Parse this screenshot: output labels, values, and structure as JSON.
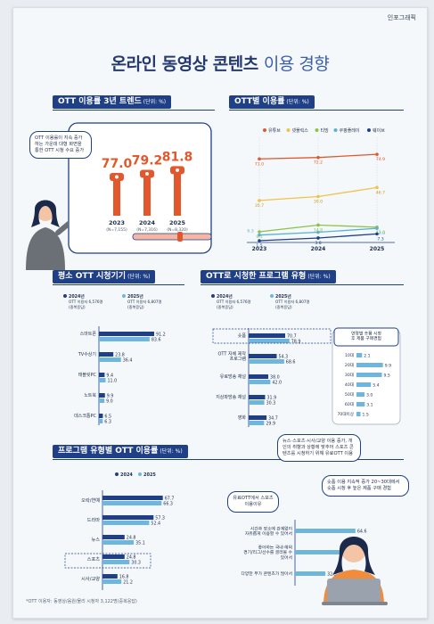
{
  "corner_label": "인포그래픽",
  "title_bold": "온라인 동영상 콘텐츠",
  "title_thin": "이용 경향",
  "footnote": "*OTT 이용자: 동영상/음원/물리 시청자 3,122명(중복응답)",
  "bubble_ott": "OTT 이용률이 지속 증가하는 가운데 대형 화면을 통한 OTT 시청 수요 증가",
  "bubble_top": "뉴스·스포츠·시사/교양 이용 증가, 개인의 취향과 상황에 맞추어 스포츠 콘텐츠를 시청하기 위해 유료OTT 이용",
  "bubble_short": "숏폼 이용 지속적 증가 20~30대에서 숏폼 시청 후 높은 제품 구매 경험",
  "bubble_paid": "유료OTT에서 스포츠 이용이유",
  "chart_data": [
    {
      "id": "trend",
      "type": "bar",
      "title": "OTT 이용률 3년 트렌드",
      "unit": "(단위: %)",
      "categories": [
        "2023",
        "2024",
        "2025"
      ],
      "category_sub": [
        "(N=7,155)",
        "(N=7,316)",
        "(N=8,320)"
      ],
      "values": [
        77.0,
        79.2,
        81.8
      ],
      "labels": [
        "77.0",
        "79.2",
        "81.8"
      ],
      "color": "#e2572b",
      "ylim": [
        0,
        100
      ]
    },
    {
      "id": "byott",
      "type": "line",
      "title": "OTT별 이용률",
      "unit": "(단위: %)",
      "x": [
        "2023",
        "2024",
        "2025"
      ],
      "ylim": [
        0,
        80
      ],
      "series": [
        {
          "name": "유튜브",
          "color": "#e2572b",
          "values": [
            71.0,
            72.2,
            74.9
          ],
          "labels": [
            "71.0",
            "72.2",
            "74.9"
          ]
        },
        {
          "name": "넷플릭스",
          "color": "#f2c14a",
          "values": [
            35.7,
            39.0,
            46.7
          ],
          "labels": [
            "35.7",
            "39.0",
            "46.7"
          ]
        },
        {
          "name": "티빙",
          "color": "#8bc34a",
          "values": [
            9.1,
            14.8,
            13.0
          ],
          "labels": [
            "9.1",
            "14.8",
            "13.0"
          ]
        },
        {
          "name": "쿠팡플레이",
          "color": "#5bb0d6",
          "values": [
            6.3,
            8.7,
            12.0
          ],
          "labels": [
            "6.3",
            "",
            "12.0"
          ]
        },
        {
          "name": "웨이브",
          "color": "#1f3f86",
          "values": [
            1.5,
            3.8,
            7.3
          ],
          "labels": [
            "1.5",
            "3.8",
            "7.3"
          ]
        }
      ]
    },
    {
      "id": "device",
      "type": "bar",
      "title": "평소 OTT 시청기기",
      "unit": "(단위: %)",
      "categories": [
        "스마트폰",
        "TV수상기",
        "태블릿PC",
        "노트북",
        "데스크톱PC"
      ],
      "series": [
        {
          "name": "2024년",
          "sub": "OTT 이용자 6,576명",
          "note": "(중복응답)",
          "color": "#1f3f86",
          "values": [
            91.2,
            23.8,
            9.4,
            9.9,
            6.5
          ]
        },
        {
          "name": "2025년",
          "sub": "OTT 이용자 6,807명",
          "note": "(중복응답)",
          "color": "#6fb6dc",
          "values": [
            83.6,
            36.4,
            11.0,
            9.0,
            6.3
          ]
        }
      ],
      "xlim": [
        0,
        100
      ]
    },
    {
      "id": "program",
      "type": "bar",
      "title": "OTT로 시청한 프로그램 유형",
      "unit": "(단위: %)",
      "categories": [
        "숏폼",
        "OTT 자체 제작 프로그램",
        "유료방송 채널",
        "지상파방송 채널",
        "영화"
      ],
      "series": [
        {
          "name": "2024년",
          "sub": "OTT 이용자 6,576명",
          "note": "(중복응답)",
          "color": "#1f3f86",
          "values": [
            70.7,
            54.3,
            38.0,
            31.9,
            34.7
          ]
        },
        {
          "name": "2025년",
          "sub": "OTT 이용자 6,807명",
          "note": "(중복응답)",
          "color": "#6fb6dc",
          "values": [
            78.9,
            68.6,
            42.0,
            30.3,
            29.9
          ]
        }
      ],
      "xlim": [
        0,
        100
      ]
    },
    {
      "id": "age",
      "type": "bar",
      "title": "연령별 숏폼 시청 후 제품 구매경험",
      "categories": [
        "10대",
        "20대",
        "30대",
        "40대",
        "50대",
        "60대",
        "70대이상"
      ],
      "values": [
        2.1,
        9.9,
        9.5,
        5.4,
        3.0,
        3.1,
        1.5
      ],
      "color": "#6fb6dc",
      "xlim": [
        0,
        12
      ]
    },
    {
      "id": "genre",
      "type": "bar",
      "title": "프로그램 유형별 OTT 이용률",
      "unit": "(단위: %)",
      "categories": [
        "오락/연예",
        "드라마",
        "뉴스",
        "스포츠",
        "시사/교양"
      ],
      "series": [
        {
          "name": "2024",
          "color": "#1f3f86",
          "values": [
            67.7,
            57.3,
            24.8,
            24.8,
            16.8
          ]
        },
        {
          "name": "2025",
          "color": "#6fb6dc",
          "values": [
            66.3,
            52.4,
            35.1,
            30.3,
            21.2
          ]
        }
      ],
      "xlim": [
        0,
        100
      ]
    },
    {
      "id": "reason",
      "type": "bar",
      "title": "유료OTT에서 스포츠 이용이유",
      "categories": [
        "시간과 장소에 관계없이 자유롭게 이용할 수 있어서",
        "좋아하는 국내·해외 경기/리그/선수를 골라볼 수 있어서",
        "다양한 부가 콘텐츠가 많아서"
      ],
      "values": [
        64.6,
        47.8,
        32.5
      ],
      "color": "#6fb6dc",
      "xlim": [
        0,
        100
      ]
    }
  ]
}
